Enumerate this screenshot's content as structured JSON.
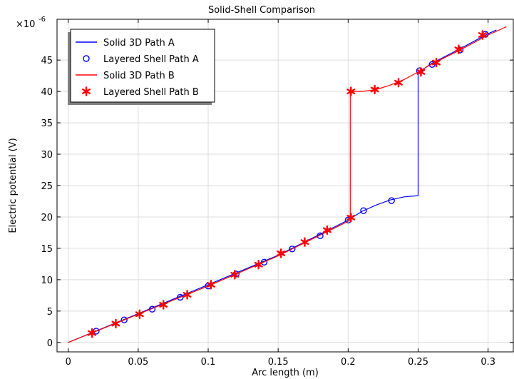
{
  "chart_data": {
    "type": "line",
    "title": "Solid-Shell Comparison",
    "xlabel": "Arc length (m)",
    "ylabel": "Electric potential (V)",
    "y_multiplier": "×10",
    "y_multiplier_exp": "-6",
    "xlim": [
      -0.008,
      0.318
    ],
    "ylim": [
      -1.5,
      51.5
    ],
    "xticks": [
      0,
      0.05,
      0.1,
      0.15,
      0.2,
      0.25,
      0.3
    ],
    "xtick_labels": [
      "0",
      "0.05",
      "0.1",
      "0.15",
      "0.2",
      "0.25",
      "0.3"
    ],
    "yticks": [
      0,
      5,
      10,
      15,
      20,
      25,
      30,
      35,
      40,
      45
    ],
    "ytick_labels": [
      "0",
      "5",
      "10",
      "15",
      "20",
      "25",
      "30",
      "35",
      "40",
      "45"
    ],
    "grid": true,
    "legend_position": "top-left",
    "series": [
      {
        "name": "Solid 3D Path A",
        "kind": "line",
        "color": "#0000ff",
        "x": [
          0,
          0.05,
          0.1,
          0.15,
          0.2,
          0.21,
          0.22,
          0.23,
          0.24,
          0.25,
          0.25,
          0.26,
          0.28,
          0.3,
          0.306
        ],
        "y": [
          0,
          4.6,
          9.2,
          13.9,
          19.5,
          20.9,
          21.9,
          22.7,
          23.2,
          23.4,
          43.0,
          44.5,
          46.8,
          49.2,
          49.8
        ]
      },
      {
        "name": "Layered Shell Path A",
        "kind": "scatter",
        "marker": "circle",
        "color": "#0000ff",
        "x": [
          0.02,
          0.04,
          0.06,
          0.08,
          0.1,
          0.12,
          0.14,
          0.16,
          0.18,
          0.2,
          0.211,
          0.231,
          0.251,
          0.26,
          0.28,
          0.298
        ],
        "y": [
          1.8,
          3.6,
          5.3,
          7.2,
          9.0,
          10.9,
          12.8,
          14.9,
          17.0,
          19.5,
          21.0,
          22.6,
          43.3,
          44.3,
          46.6,
          49.1
        ]
      },
      {
        "name": "Solid 3D Path B",
        "kind": "line",
        "color": "#ff0000",
        "x": [
          0,
          0.05,
          0.1,
          0.15,
          0.2,
          0.2015,
          0.2015,
          0.21,
          0.22,
          0.23,
          0.24,
          0.25,
          0.26,
          0.28,
          0.3,
          0.313
        ],
        "y": [
          0,
          4.5,
          9.0,
          13.8,
          19.3,
          19.5,
          40.0,
          40.0,
          40.3,
          41.0,
          41.9,
          43.1,
          44.4,
          46.6,
          49.0,
          50.3
        ]
      },
      {
        "name": "Layered Shell Path B",
        "kind": "scatter",
        "marker": "asterisk",
        "color": "#ff0000",
        "x": [
          0.017,
          0.034,
          0.051,
          0.068,
          0.085,
          0.102,
          0.119,
          0.136,
          0.152,
          0.169,
          0.185,
          0.202,
          0.202,
          0.219,
          0.236,
          0.252,
          0.263,
          0.279,
          0.296
        ],
        "y": [
          1.5,
          3.0,
          4.5,
          6.0,
          7.6,
          9.2,
          10.8,
          12.4,
          14.2,
          16.0,
          17.9,
          19.9,
          40.0,
          40.3,
          41.4,
          43.1,
          44.6,
          46.7,
          49.0
        ]
      }
    ]
  }
}
